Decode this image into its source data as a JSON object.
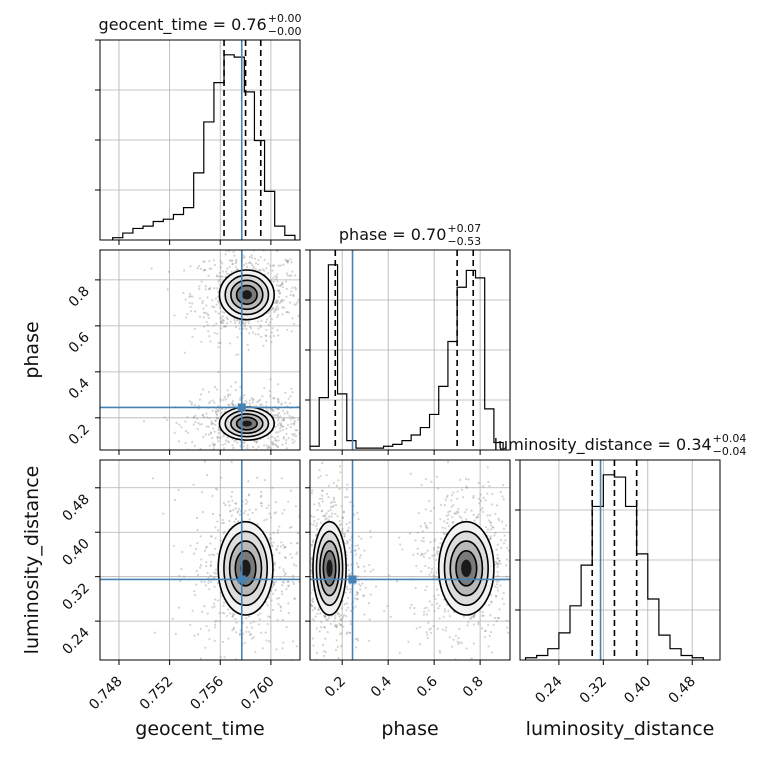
{
  "chart_data": {
    "type": "corner",
    "parameters": [
      "geocent_time",
      "phase",
      "luminosity_distance"
    ],
    "injection": {
      "geocent_time": 0.7577,
      "phase": 0.245,
      "luminosity_distance": 0.315
    },
    "titles": [
      {
        "param": "geocent_time",
        "name": "geocent_time",
        "value": "0.76",
        "plus": "+0.00",
        "minus": "−0.00"
      },
      {
        "param": "phase",
        "name": "phase",
        "value": "0.70",
        "plus": "+0.07",
        "minus": "−0.53"
      },
      {
        "param": "luminosity_distance",
        "name": "luminosity_distance",
        "value": "0.34",
        "plus": "+0.04",
        "minus": "−0.04"
      }
    ],
    "axis_labels": {
      "geocent_time": "geocent_time",
      "phase": "phase",
      "luminosity_distance": "luminosity_distance"
    },
    "ranges": {
      "geocent_time": [
        0.7465,
        0.7623
      ],
      "phase": [
        0.06,
        0.93
      ],
      "luminosity_distance": [
        0.17,
        0.53
      ]
    },
    "ticks": {
      "geocent_time": {
        "values": [
          0.748,
          0.752,
          0.756,
          0.76
        ],
        "labels": [
          "0.748",
          "0.752",
          "0.756",
          "0.760"
        ]
      },
      "phase": {
        "values": [
          0.2,
          0.4,
          0.6,
          0.8
        ],
        "labels": [
          "0.2",
          "0.4",
          "0.6",
          "0.8"
        ]
      },
      "luminosity_distance": {
        "values": [
          0.24,
          0.32,
          0.4,
          0.48
        ],
        "labels": [
          "0.24",
          "0.32",
          "0.40",
          "0.48"
        ]
      }
    },
    "histograms": {
      "geocent_time": {
        "bin_edges": [
          0.7475,
          0.7483,
          0.7491,
          0.7499,
          0.7507,
          0.7515,
          0.7523,
          0.7531,
          0.7539,
          0.7547,
          0.7555,
          0.7563,
          0.7571,
          0.7579,
          0.7587,
          0.7595,
          0.7603,
          0.7611,
          0.7619
        ],
        "counts": [
          1,
          3,
          5,
          6,
          8,
          9,
          11,
          14,
          29,
          51,
          68,
          80,
          79,
          64,
          43,
          21,
          6,
          2
        ],
        "quantiles": [
          0.7563,
          0.758,
          0.7592
        ]
      },
      "phase": {
        "bin_edges": [
          0.06,
          0.1,
          0.14,
          0.18,
          0.22,
          0.26,
          0.3,
          0.34,
          0.38,
          0.42,
          0.46,
          0.5,
          0.54,
          0.58,
          0.62,
          0.66,
          0.7,
          0.74,
          0.78,
          0.82,
          0.86,
          0.9
        ],
        "counts": [
          2,
          28,
          99,
          30,
          5,
          1,
          1,
          1,
          2,
          3,
          5,
          8,
          12,
          19,
          34,
          58,
          87,
          96,
          92,
          22,
          4
        ],
        "quantiles": [
          0.17,
          0.7,
          0.77
        ]
      },
      "luminosity_distance": {
        "bin_edges": [
          0.18,
          0.2,
          0.22,
          0.24,
          0.26,
          0.28,
          0.3,
          0.32,
          0.34,
          0.36,
          0.38,
          0.4,
          0.42,
          0.44,
          0.46,
          0.48,
          0.5
        ],
        "counts": [
          1,
          2,
          5,
          12,
          24,
          42,
          68,
          82,
          81,
          68,
          47,
          27,
          11,
          5,
          2,
          1
        ],
        "quantiles": [
          0.3,
          0.34,
          0.38
        ]
      }
    },
    "blobs": {
      "phase_vs_geocent_time": [
        {
          "x": 0.7581,
          "y": 0.735,
          "sx": 0.0009,
          "sy": 0.045
        },
        {
          "x": 0.7581,
          "y": 0.175,
          "sx": 0.0009,
          "sy": 0.03
        }
      ],
      "luminosity_distance_vs_geocent_time": [
        {
          "x": 0.758,
          "y": 0.335,
          "sx": 0.0009,
          "sy": 0.035
        }
      ],
      "luminosity_distance_vs_phase": [
        {
          "x": 0.145,
          "y": 0.335,
          "sx": 0.03,
          "sy": 0.035
        },
        {
          "x": 0.74,
          "y": 0.335,
          "sx": 0.05,
          "sy": 0.035
        }
      ]
    },
    "grid": true,
    "colors": {
      "injection": "#4682b4",
      "hist": "#000000",
      "scatter": "#808080"
    }
  }
}
